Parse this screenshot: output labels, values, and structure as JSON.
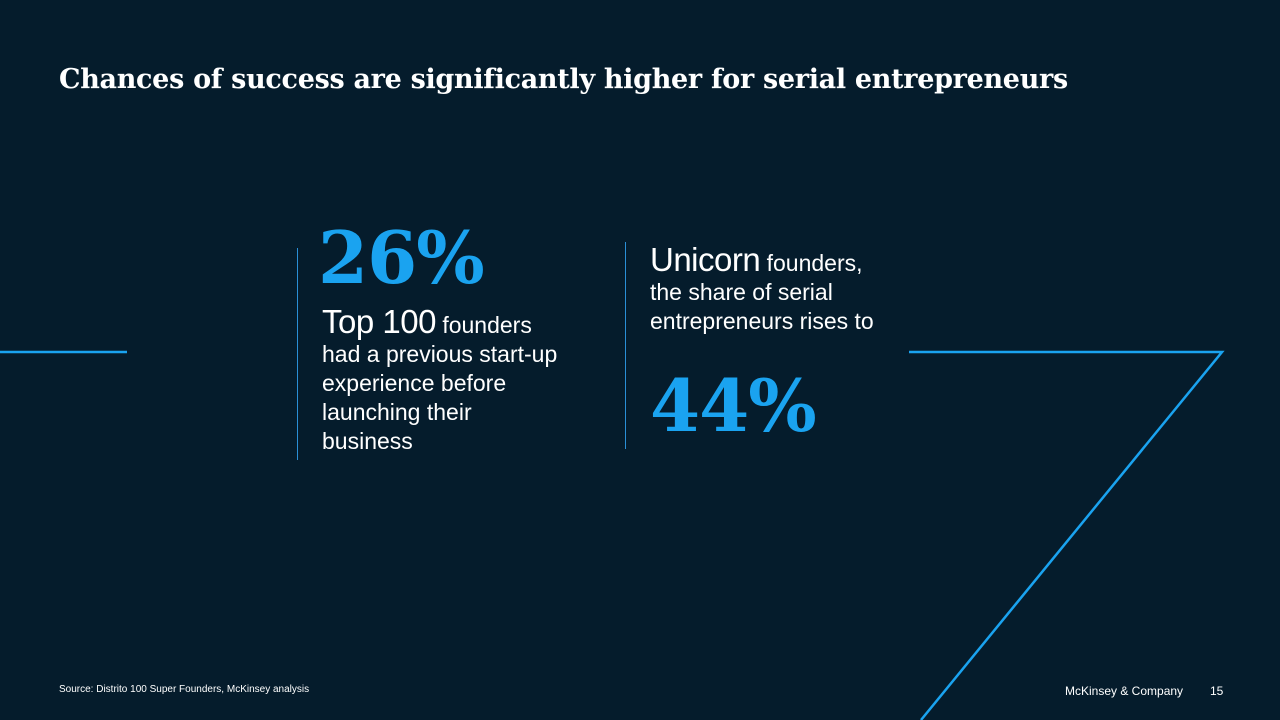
{
  "slide": {
    "title": "Chances of success are significantly higher for serial entrepreneurs"
  },
  "stat_left": {
    "value": "26%",
    "lead": "Top 100",
    "lead_rest": "founders",
    "lines": [
      "had a previous start-up",
      "experience before",
      "launching their",
      "business"
    ]
  },
  "stat_right": {
    "lead": "Unicorn",
    "lead_rest": "founders,",
    "lines": [
      "the share of serial",
      "entrepreneurs rises to"
    ],
    "value": "44%"
  },
  "footer": {
    "source": "Source: Distrito 100 Super Founders, McKinsey analysis",
    "brand": "McKinsey & Company",
    "page_number": "15"
  },
  "colors": {
    "background": "#051c2c",
    "accent": "#1aa3f0"
  }
}
